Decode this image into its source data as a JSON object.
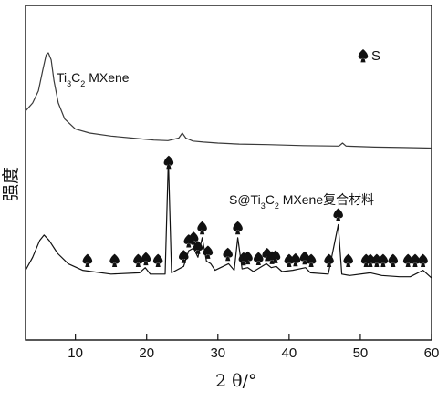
{
  "chart_data": {
    "type": "line",
    "title": "",
    "xlabel": "2 θ/°",
    "ylabel": "强度",
    "xlim": [
      3,
      60
    ],
    "x_ticks": [
      10,
      20,
      30,
      40,
      50,
      60
    ],
    "y_ticks_shown": false,
    "grid": false,
    "legend": {
      "marker": "spade",
      "label": "S",
      "placement": "top-right"
    },
    "series": [
      {
        "name": "Ti3C2 MXene",
        "label_parts": [
          "Ti",
          "3",
          "C",
          "2",
          " MXene"
        ],
        "color": "#3a3a3a",
        "points": [
          [
            3,
            0.42
          ],
          [
            4,
            0.5
          ],
          [
            4.8,
            0.62
          ],
          [
            5.4,
            0.82
          ],
          [
            5.9,
            0.98
          ],
          [
            6.2,
            1.0
          ],
          [
            6.6,
            0.93
          ],
          [
            7.0,
            0.72
          ],
          [
            7.6,
            0.5
          ],
          [
            8.5,
            0.34
          ],
          [
            10,
            0.24
          ],
          [
            12,
            0.2
          ],
          [
            15,
            0.17
          ],
          [
            18,
            0.15
          ],
          [
            21,
            0.13
          ],
          [
            23,
            0.125
          ],
          [
            24.5,
            0.15
          ],
          [
            25.0,
            0.2
          ],
          [
            25.5,
            0.15
          ],
          [
            26.5,
            0.12
          ],
          [
            28,
            0.11
          ],
          [
            30,
            0.1
          ],
          [
            33,
            0.09
          ],
          [
            37,
            0.085
          ],
          [
            42,
            0.075
          ],
          [
            47,
            0.07
          ],
          [
            47.5,
            0.1
          ],
          [
            48,
            0.07
          ],
          [
            52,
            0.06
          ],
          [
            56,
            0.055
          ],
          [
            60,
            0.05
          ]
        ]
      },
      {
        "name": "S@Ti3C2 MXene复合材料",
        "label_parts": [
          "S@Ti",
          "3",
          "C",
          "2",
          " MXene复合材料"
        ],
        "color": "#111111",
        "points": [
          [
            3,
            0.15
          ],
          [
            4,
            0.25
          ],
          [
            5,
            0.38
          ],
          [
            5.6,
            0.42
          ],
          [
            6.3,
            0.38
          ],
          [
            7.5,
            0.28
          ],
          [
            9,
            0.2
          ],
          [
            11,
            0.15
          ],
          [
            15,
            0.12
          ],
          [
            19,
            0.13
          ],
          [
            19.8,
            0.17
          ],
          [
            20.5,
            0.12
          ],
          [
            22.6,
            0.12
          ],
          [
            23.05,
            1.0
          ],
          [
            23.5,
            0.13
          ],
          [
            25.2,
            0.18
          ],
          [
            25.9,
            0.3
          ],
          [
            26.6,
            0.32
          ],
          [
            27.2,
            0.25
          ],
          [
            27.8,
            0.4
          ],
          [
            28.4,
            0.22
          ],
          [
            29,
            0.2
          ],
          [
            29.6,
            0.15
          ],
          [
            31.5,
            0.2
          ],
          [
            32.3,
            0.15
          ],
          [
            32.8,
            0.4
          ],
          [
            33.4,
            0.16
          ],
          [
            34.2,
            0.17
          ],
          [
            35,
            0.14
          ],
          [
            36.8,
            0.2
          ],
          [
            37.5,
            0.17
          ],
          [
            38.2,
            0.18
          ],
          [
            39,
            0.14
          ],
          [
            40.5,
            0.15
          ],
          [
            42.3,
            0.17
          ],
          [
            43,
            0.13
          ],
          [
            45.5,
            0.12
          ],
          [
            46.9,
            0.5
          ],
          [
            47.4,
            0.12
          ],
          [
            48.5,
            0.11
          ],
          [
            51.4,
            0.13
          ],
          [
            53,
            0.11
          ],
          [
            55.5,
            0.1
          ],
          [
            57,
            0.1
          ],
          [
            58.8,
            0.15
          ],
          [
            60,
            0.09
          ]
        ]
      }
    ],
    "sulfur_peaks": [
      11.7,
      15.5,
      18.8,
      19.9,
      21.6,
      23.1,
      25.2,
      25.9,
      26.6,
      27.2,
      27.8,
      28.6,
      31.4,
      32.8,
      33.6,
      34.2,
      35.7,
      36.9,
      37.6,
      38.1,
      40.0,
      40.9,
      42.2,
      43.1,
      45.6,
      46.9,
      48.3,
      50.8,
      51.4,
      52.3,
      53.2,
      54.6,
      56.7,
      57.7,
      58.8
    ]
  }
}
